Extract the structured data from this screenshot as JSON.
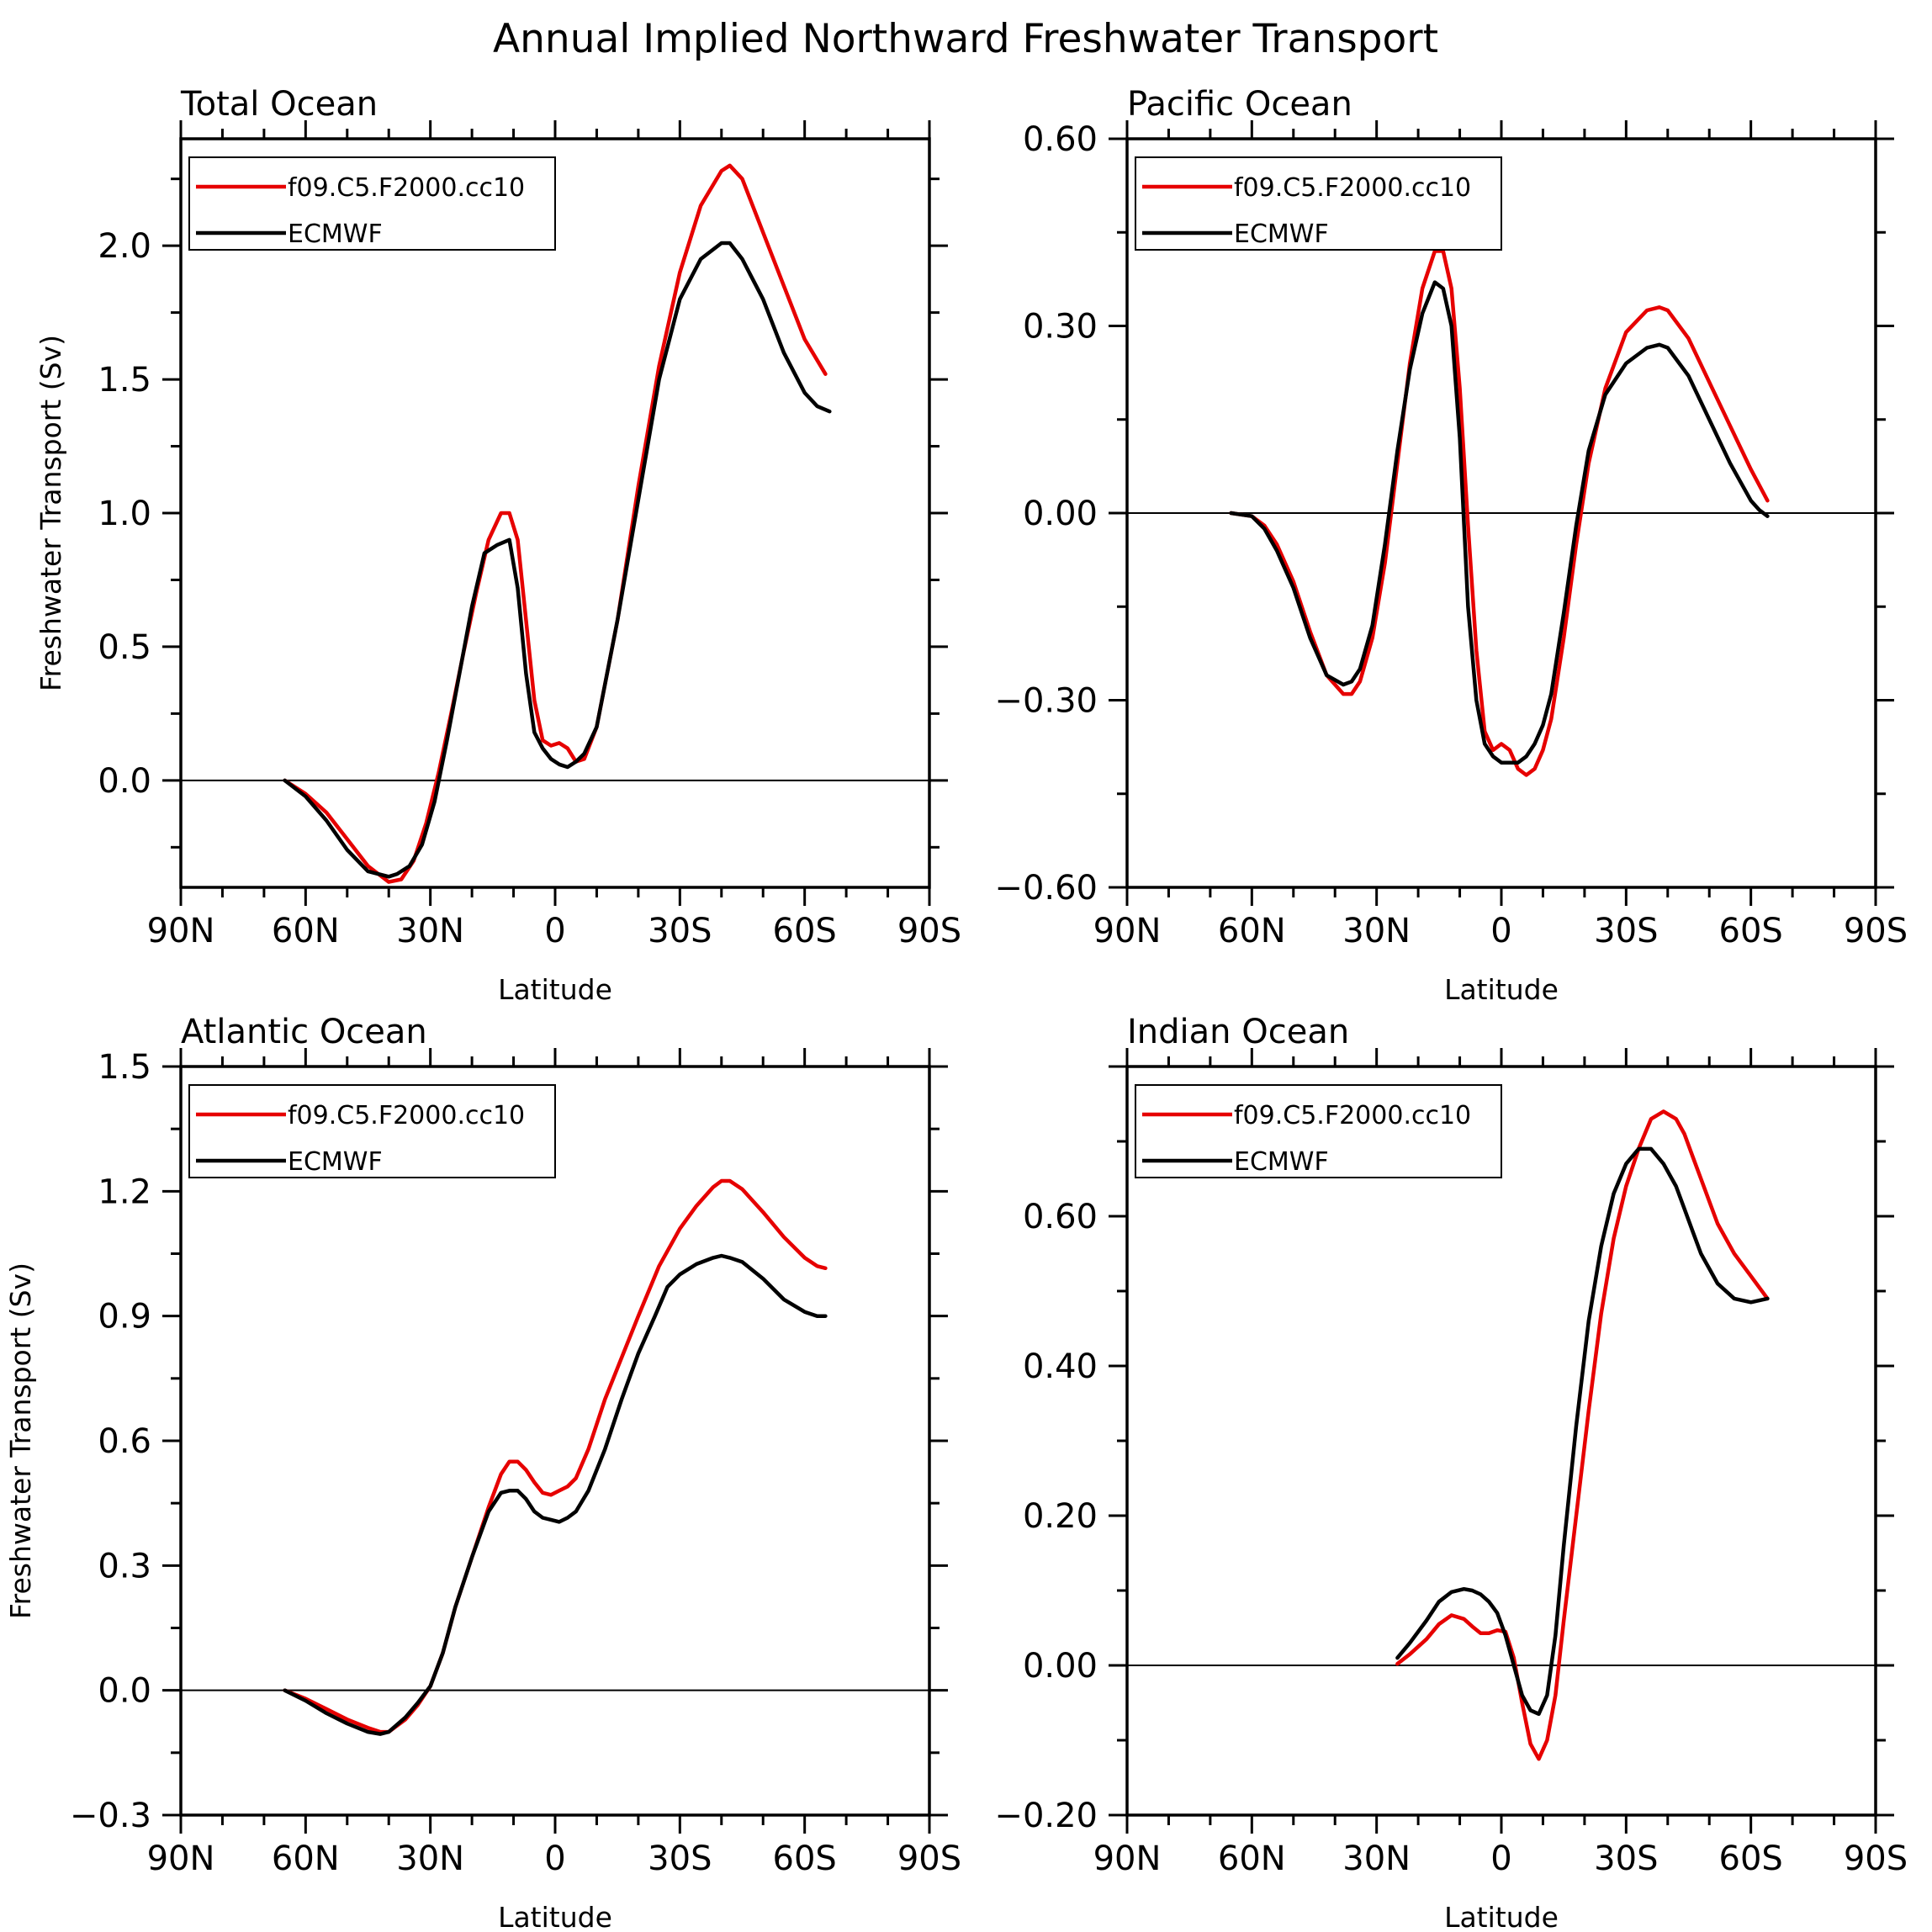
{
  "figure": {
    "title": "Annual Implied Northward Freshwater Transport"
  },
  "colors": {
    "model": "#e60000",
    "obs": "#000000",
    "axes": "#000000"
  },
  "chart_data": [
    {
      "type": "line",
      "title": "Total Ocean",
      "xlabel": "Latitude",
      "ylabel": "Freshwater Transport (Sv)",
      "xlim": [
        90,
        -90
      ],
      "ylim": [
        -0.4,
        2.4
      ],
      "xticks": [
        90,
        60,
        30,
        0,
        -30,
        -60,
        -90
      ],
      "xticklabels": [
        "90N",
        "60N",
        "30N",
        "0",
        "30S",
        "60S",
        "90S"
      ],
      "yticks": [
        0,
        0.5,
        1,
        1.5,
        2
      ],
      "yticklabels": [
        "0.0",
        "0.5",
        "1.0",
        "1.5",
        "2.0"
      ],
      "zero_line": true,
      "legend": "top-left",
      "series": [
        {
          "name": "f09.C5.F2000.cc10",
          "color": "#e60000",
          "x": [
            65,
            60,
            55,
            50,
            45,
            40,
            37,
            34,
            31,
            28,
            25,
            22,
            19,
            16,
            13,
            11,
            9,
            7,
            5,
            3,
            1,
            -1,
            -3,
            -5,
            -7,
            -10,
            -15,
            -20,
            -25,
            -30,
            -35,
            -40,
            -42,
            -45,
            -50,
            -55,
            -60,
            -65
          ],
          "y": [
            0,
            -0.05,
            -0.12,
            -0.22,
            -0.32,
            -0.38,
            -0.37,
            -0.3,
            -0.16,
            0.03,
            0.25,
            0.48,
            0.7,
            0.9,
            1.0,
            1.0,
            0.9,
            0.6,
            0.3,
            0.15,
            0.13,
            0.14,
            0.12,
            0.07,
            0.08,
            0.2,
            0.6,
            1.1,
            1.55,
            1.9,
            2.15,
            2.28,
            2.3,
            2.25,
            2.05,
            1.85,
            1.65,
            1.52
          ]
        },
        {
          "name": "ECMWF",
          "color": "#000000",
          "x": [
            65,
            60,
            55,
            50,
            45,
            40,
            38,
            35,
            32,
            29,
            26,
            23,
            20,
            17,
            14,
            11,
            9,
            7,
            5,
            3,
            1,
            -1,
            -3,
            -5,
            -7,
            -10,
            -15,
            -20,
            -25,
            -30,
            -35,
            -40,
            -42,
            -45,
            -50,
            -55,
            -60,
            -63,
            -66
          ],
          "y": [
            0,
            -0.06,
            -0.15,
            -0.26,
            -0.34,
            -0.36,
            -0.35,
            -0.32,
            -0.24,
            -0.08,
            0.15,
            0.4,
            0.65,
            0.85,
            0.88,
            0.9,
            0.72,
            0.4,
            0.18,
            0.12,
            0.08,
            0.06,
            0.05,
            0.07,
            0.1,
            0.2,
            0.6,
            1.05,
            1.5,
            1.8,
            1.95,
            2.01,
            2.01,
            1.95,
            1.8,
            1.6,
            1.45,
            1.4,
            1.38
          ]
        }
      ]
    },
    {
      "type": "line",
      "title": "Pacific Ocean",
      "xlabel": "Latitude",
      "ylabel": "",
      "xlim": [
        90,
        -90
      ],
      "ylim": [
        -0.6,
        0.6
      ],
      "xticks": [
        90,
        60,
        30,
        0,
        -30,
        -60,
        -90
      ],
      "xticklabels": [
        "90N",
        "60N",
        "30N",
        "0",
        "30S",
        "60S",
        "90S"
      ],
      "yticks": [
        -0.6,
        -0.3,
        0,
        0.3,
        0.6
      ],
      "yticklabels": [
        "−0.60",
        "−0.30",
        "0.00",
        "0.30",
        "0.60"
      ],
      "zero_line": true,
      "legend": "top-left",
      "series": [
        {
          "name": "f09.C5.F2000.cc10",
          "color": "#e60000",
          "x": [
            65,
            60,
            57,
            54,
            50,
            46,
            42,
            38,
            36,
            34,
            31,
            28,
            25,
            22,
            19,
            16,
            14,
            12,
            10,
            8,
            6,
            4,
            2,
            0,
            -2,
            -4,
            -6,
            -8,
            -10,
            -12,
            -15,
            -18,
            -21,
            -25,
            -30,
            -35,
            -38,
            -40,
            -45,
            -50,
            -55,
            -60,
            -64
          ],
          "y": [
            0,
            -0.005,
            -0.02,
            -0.05,
            -0.11,
            -0.19,
            -0.26,
            -0.29,
            -0.29,
            -0.27,
            -0.2,
            -0.08,
            0.08,
            0.24,
            0.36,
            0.42,
            0.42,
            0.36,
            0.2,
            -0.02,
            -0.22,
            -0.35,
            -0.38,
            -0.37,
            -0.38,
            -0.41,
            -0.42,
            -0.41,
            -0.38,
            -0.33,
            -0.2,
            -0.05,
            0.08,
            0.2,
            0.29,
            0.325,
            0.33,
            0.325,
            0.28,
            0.21,
            0.14,
            0.07,
            0.02
          ]
        },
        {
          "name": "ECMWF",
          "color": "#000000",
          "x": [
            65,
            60,
            57,
            54,
            50,
            46,
            42,
            38,
            36,
            34,
            31,
            28,
            25,
            22,
            19,
            16,
            14,
            12,
            10,
            8,
            6,
            4,
            2,
            0,
            -2,
            -4,
            -6,
            -8,
            -10,
            -12,
            -15,
            -18,
            -21,
            -25,
            -30,
            -35,
            -38,
            -40,
            -45,
            -50,
            -55,
            -60,
            -62,
            -64
          ],
          "y": [
            0,
            -0.005,
            -0.025,
            -0.06,
            -0.12,
            -0.2,
            -0.26,
            -0.275,
            -0.27,
            -0.25,
            -0.18,
            -0.05,
            0.1,
            0.23,
            0.32,
            0.37,
            0.36,
            0.3,
            0.12,
            -0.15,
            -0.3,
            -0.37,
            -0.39,
            -0.4,
            -0.4,
            -0.4,
            -0.39,
            -0.37,
            -0.34,
            -0.29,
            -0.16,
            -0.02,
            0.1,
            0.19,
            0.24,
            0.265,
            0.27,
            0.265,
            0.22,
            0.15,
            0.08,
            0.02,
            0.005,
            -0.005
          ]
        }
      ]
    },
    {
      "type": "line",
      "title": "Atlantic Ocean",
      "xlabel": "Latitude",
      "ylabel": "Freshwater Transport (Sv)",
      "xlim": [
        90,
        -90
      ],
      "ylim": [
        -0.3,
        1.5
      ],
      "xticks": [
        90,
        60,
        30,
        0,
        -30,
        -60,
        -90
      ],
      "xticklabels": [
        "90N",
        "60N",
        "30N",
        "0",
        "30S",
        "60S",
        "90S"
      ],
      "yticks": [
        -0.3,
        0,
        0.3,
        0.6,
        0.9,
        1.2,
        1.5
      ],
      "yticklabels": [
        "−0.3",
        "0.0",
        "0.3",
        "0.6",
        "0.9",
        "1.2",
        "1.5"
      ],
      "zero_line": true,
      "legend": "top-left",
      "series": [
        {
          "name": "f09.C5.F2000.cc10",
          "color": "#e60000",
          "x": [
            65,
            60,
            55,
            50,
            45,
            42,
            40,
            36,
            33,
            30,
            27,
            24,
            20,
            16,
            13,
            11,
            9,
            7,
            5,
            3,
            1,
            -1,
            -3,
            -5,
            -8,
            -12,
            -16,
            -20,
            -25,
            -30,
            -34,
            -38,
            -40,
            -42,
            -45,
            -50,
            -55,
            -60,
            -63,
            -65
          ],
          "y": [
            0,
            -0.02,
            -0.045,
            -0.07,
            -0.09,
            -0.1,
            -0.1,
            -0.07,
            -0.035,
            0.01,
            0.09,
            0.2,
            0.32,
            0.44,
            0.52,
            0.55,
            0.55,
            0.53,
            0.5,
            0.475,
            0.47,
            0.48,
            0.49,
            0.51,
            0.58,
            0.7,
            0.8,
            0.9,
            1.02,
            1.11,
            1.165,
            1.21,
            1.225,
            1.225,
            1.205,
            1.15,
            1.09,
            1.04,
            1.02,
            1.015
          ]
        },
        {
          "name": "ECMWF",
          "color": "#000000",
          "x": [
            65,
            60,
            55,
            50,
            45,
            42,
            40,
            36,
            33,
            30,
            27,
            24,
            20,
            16,
            13,
            11,
            9,
            7,
            5,
            3,
            1,
            -1,
            -3,
            -5,
            -8,
            -12,
            -16,
            -20,
            -24,
            -27,
            -30,
            -34,
            -38,
            -40,
            -42,
            -45,
            -50,
            -55,
            -60,
            -63,
            -65
          ],
          "y": [
            0,
            -0.025,
            -0.055,
            -0.08,
            -0.1,
            -0.105,
            -0.1,
            -0.065,
            -0.03,
            0.01,
            0.09,
            0.2,
            0.32,
            0.43,
            0.475,
            0.48,
            0.48,
            0.46,
            0.43,
            0.415,
            0.41,
            0.405,
            0.415,
            0.43,
            0.48,
            0.58,
            0.7,
            0.81,
            0.9,
            0.97,
            1.0,
            1.025,
            1.04,
            1.045,
            1.04,
            1.03,
            0.99,
            0.94,
            0.91,
            0.9,
            0.9
          ]
        }
      ]
    },
    {
      "type": "line",
      "title": "Indian Ocean",
      "xlabel": "Latitude",
      "ylabel": "",
      "xlim": [
        90,
        -90
      ],
      "ylim": [
        -0.2,
        0.8
      ],
      "xticks": [
        90,
        60,
        30,
        0,
        -30,
        -60,
        -90
      ],
      "xticklabels": [
        "90N",
        "60N",
        "30N",
        "0",
        "30S",
        "60S",
        "90S"
      ],
      "yticks": [
        -0.2,
        0,
        0.2,
        0.4,
        0.6
      ],
      "yticklabels": [
        "−0.20",
        "0.00",
        "0.20",
        "0.40",
        "0.60"
      ],
      "zero_line": true,
      "legend": "top-left",
      "series": [
        {
          "name": "f09.C5.F2000.cc10",
          "color": "#e60000",
          "x": [
            25,
            22,
            18,
            15,
            12,
            9,
            7,
            5,
            3,
            1,
            -1,
            -3,
            -5,
            -7,
            -9,
            -11,
            -13,
            -15,
            -18,
            -21,
            -24,
            -27,
            -30,
            -33,
            -36,
            -39,
            -42,
            -44,
            -46,
            -48,
            -52,
            -56,
            -60,
            -64
          ],
          "y": [
            0.002,
            0.015,
            0.035,
            0.055,
            0.067,
            0.062,
            0.052,
            0.043,
            0.043,
            0.047,
            0.045,
            0.01,
            -0.05,
            -0.105,
            -0.125,
            -0.1,
            -0.04,
            0.06,
            0.2,
            0.34,
            0.47,
            0.57,
            0.64,
            0.69,
            0.73,
            0.74,
            0.73,
            0.71,
            0.68,
            0.65,
            0.59,
            0.55,
            0.52,
            0.49
          ]
        },
        {
          "name": "ECMWF",
          "color": "#000000",
          "x": [
            25,
            22,
            18,
            15,
            12,
            9,
            7,
            5,
            3,
            1,
            -1,
            -3,
            -5,
            -7,
            -9,
            -11,
            -13,
            -15,
            -18,
            -21,
            -24,
            -27,
            -30,
            -33,
            -36,
            -39,
            -42,
            -44,
            -46,
            -48,
            -52,
            -56,
            -60,
            -64
          ],
          "y": [
            0.01,
            0.03,
            0.06,
            0.085,
            0.098,
            0.102,
            0.1,
            0.095,
            0.085,
            0.07,
            0.04,
            0.0,
            -0.04,
            -0.06,
            -0.065,
            -0.04,
            0.04,
            0.16,
            0.32,
            0.46,
            0.56,
            0.63,
            0.67,
            0.69,
            0.69,
            0.67,
            0.64,
            0.61,
            0.58,
            0.55,
            0.51,
            0.49,
            0.485,
            0.49
          ]
        }
      ]
    }
  ]
}
